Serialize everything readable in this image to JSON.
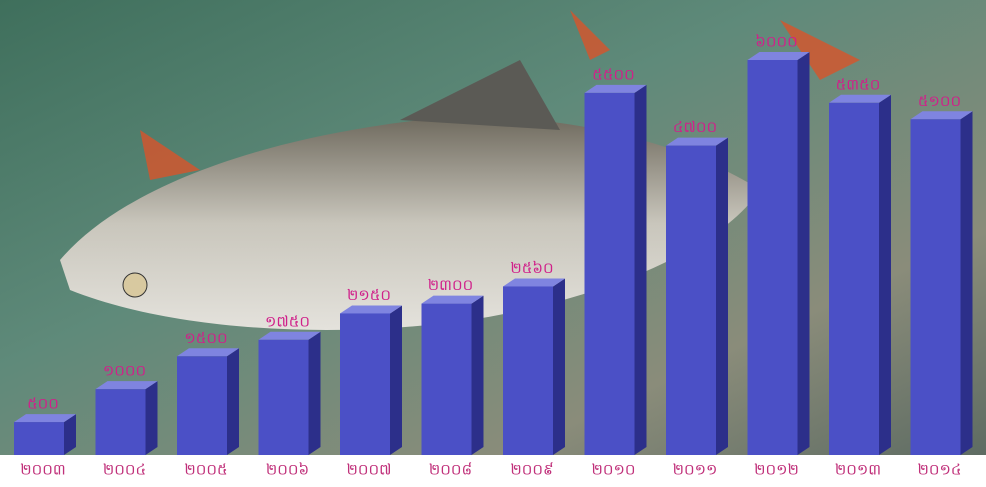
{
  "chart_data": {
    "type": "bar3d",
    "categories": [
      "២០០៣",
      "២០០៤",
      "២០០៥",
      "២០០៦",
      "២០០៧",
      "២០០៨",
      "២០០៩",
      "២០១០",
      "២០១១",
      "២០១២",
      "២០១៣",
      "២០១៤"
    ],
    "values": [
      500,
      1000,
      1500,
      1750,
      2150,
      2300,
      2560,
      5500,
      4700,
      6000,
      5350,
      5100
    ],
    "value_labels": [
      "៥០០",
      "១០០០",
      "១៥០០",
      "១៧៥០",
      "២១៥០",
      "២៣០០",
      "២៥៦០",
      "៥៥០០",
      "៤៧០០",
      "៦០០០",
      "៥៣៥០",
      "៥១០០"
    ],
    "color": "#4b50c6"
  }
}
